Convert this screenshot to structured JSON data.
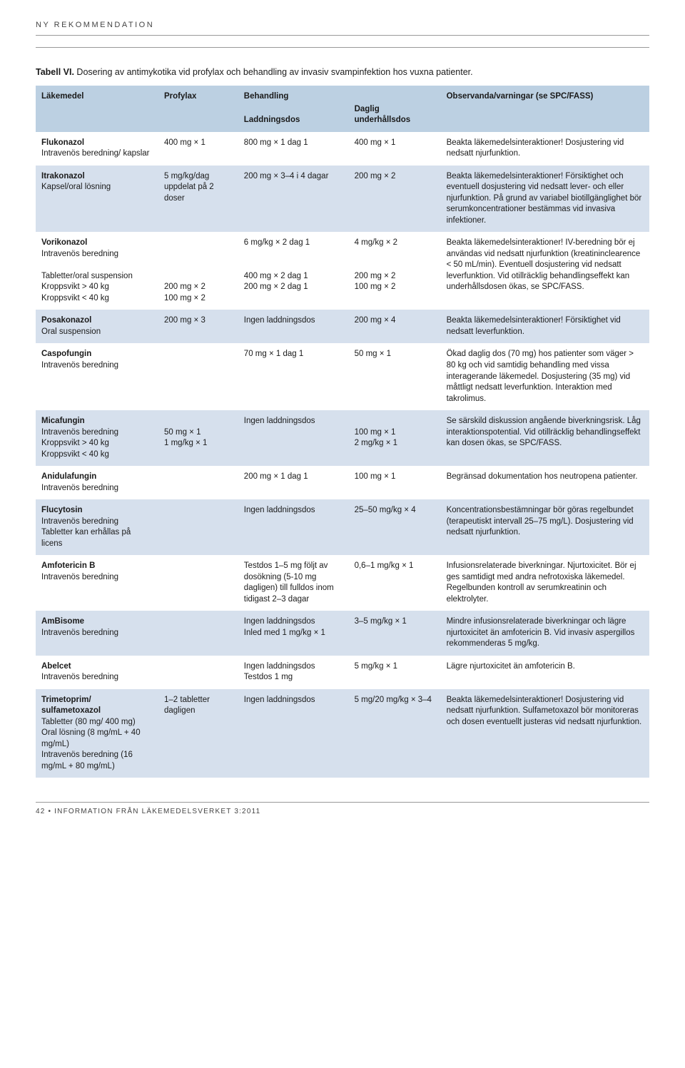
{
  "colors": {
    "header_bg": "#bcd0e2",
    "row_shade": "#d6e0ed",
    "row_white": "#ffffff",
    "rule": "#999999",
    "text": "#1a1a1a"
  },
  "fonts": {
    "base_size_pt": 9,
    "caption_size_pt": 10,
    "header_weight": "bold"
  },
  "layout": {
    "col_widths_pct": [
      20,
      13,
      18,
      15,
      34
    ]
  },
  "running_head": "NY REKOMMENDATION",
  "footer": "42 • INFORMATION FRÅN LÄKEMEDELSVERKET 3:2011",
  "caption": {
    "label": "Tabell VI.",
    "text": " Dosering av antimykotika vid profylax och behandling av invasiv svampinfektion hos vuxna patienter."
  },
  "header": {
    "c1": "Läkemedel",
    "c2": "Profylax",
    "c3a": "Behandling",
    "c3b": "Laddningsdos",
    "c4": "Daglig underhållsdos",
    "c5": "Observanda/varningar (se SPC/FASS)"
  },
  "rows": [
    {
      "shade": false,
      "drug_name": "Flukonazol",
      "drug_sub": "Intravenös beredning/ kapslar",
      "profylax": "400 mg × 1",
      "laddning": "800 mg × 1 dag 1",
      "underhall": "400 mg × 1",
      "obs": "Beakta läkemedelsinteraktioner! Dosjustering vid nedsatt njurfunktion."
    },
    {
      "shade": true,
      "drug_name": "Itrakonazol",
      "drug_sub": "Kapsel/oral lösning",
      "profylax": "5 mg/kg/dag uppdelat på 2 doser",
      "laddning": "200 mg × 3–4 i 4 dagar",
      "underhall": "200 mg × 2",
      "obs": "Beakta läkemedelsinteraktioner! Försiktighet och eventuell dosjustering vid nedsatt lever- och eller njurfunktion. På grund av variabel biotillgänglighet bör serumkoncentrationer bestämmas vid invasiva infektioner."
    },
    {
      "shade": false,
      "drug_name": "Vorikonazol",
      "drug_sub": "Intravenös beredning\n\nTabletter/oral suspension\nKroppsvikt > 40 kg\nKroppsvikt < 40 kg",
      "profylax": "\n\n\n\n200 mg × 2\n100 mg × 2",
      "laddning": "6 mg/kg × 2 dag 1\n\n\n400 mg × 2 dag 1\n200 mg × 2 dag 1",
      "underhall": "4 mg/kg × 2\n\n\n200 mg × 2\n100 mg × 2",
      "obs": "Beakta läkemedelsinteraktioner! IV-beredning bör ej användas vid nedsatt njurfunktion (kreatininclearence < 50 mL/min). Eventuell dosjustering vid nedsatt leverfunktion. Vid otillräcklig behandlingseffekt kan underhållsdosen ökas, se SPC/FASS."
    },
    {
      "shade": true,
      "drug_name": "Posakonazol",
      "drug_sub": "Oral suspension",
      "profylax": "200 mg × 3",
      "laddning": "Ingen laddningsdos",
      "underhall": "200 mg × 4",
      "obs": "Beakta läkemedelsinteraktioner! Försiktighet vid nedsatt leverfunktion."
    },
    {
      "shade": false,
      "drug_name": "Caspofungin",
      "drug_sub": "Intravenös beredning",
      "profylax": "",
      "laddning": "70 mg × 1 dag 1",
      "underhall": "50 mg × 1",
      "obs": "Ökad daglig dos (70 mg) hos patienter som väger > 80 kg och vid samtidig behandling med vissa interagerande läkemedel. Dosjustering (35 mg) vid måttligt nedsatt leverfunktion. Interaktion med takrolimus."
    },
    {
      "shade": true,
      "drug_name": "Micafungin",
      "drug_sub": "Intravenös beredning\nKroppsvikt > 40 kg\nKroppsvikt < 40 kg",
      "profylax": "\n50 mg × 1\n1 mg/kg × 1",
      "laddning": "Ingen laddningsdos",
      "underhall": "\n100 mg × 1\n2 mg/kg × 1",
      "obs": "Se särskild diskussion angående biverkningsrisk. Låg interaktionspotential. Vid otillräcklig behandlingseffekt kan dosen ökas, se SPC/FASS."
    },
    {
      "shade": false,
      "drug_name": "Anidulafungin",
      "drug_sub": "Intravenös beredning",
      "profylax": "",
      "laddning": "200 mg × 1 dag 1",
      "underhall": "100 mg × 1",
      "obs": "Begränsad dokumentation hos neutropena patienter."
    },
    {
      "shade": true,
      "drug_name": "Flucytosin",
      "drug_sub": "Intravenös beredning\nTabletter kan erhållas på licens",
      "profylax": "",
      "laddning": "Ingen laddningsdos",
      "underhall": "25–50 mg/kg × 4",
      "obs": "Koncentrationsbestämningar bör göras regelbundet (terapeutiskt intervall 25–75 mg/L). Dosjustering vid nedsatt njurfunktion."
    },
    {
      "shade": false,
      "drug_name": "Amfotericin B",
      "drug_sub": "Intravenös beredning",
      "profylax": "",
      "laddning": "Testdos 1–5 mg följt av dosökning (5-10 mg dagligen) till fulldos inom tidigast 2–3 dagar",
      "underhall": "0,6–1 mg/kg × 1",
      "obs": "Infusionsrelaterade biverkningar. Njurtoxicitet. Bör ej ges samtidigt med andra nefrotoxiska läkemedel. Regelbunden kontroll av serumkreatinin och elektrolyter."
    },
    {
      "shade": true,
      "drug_name": "AmBisome",
      "drug_sub": "Intravenös beredning",
      "profylax": "",
      "laddning": "Ingen laddningsdos\nInled med 1 mg/kg × 1",
      "underhall": "3–5 mg/kg × 1",
      "obs": "Mindre infusionsrelaterade biverkningar och lägre njurtoxicitet än amfotericin B. Vid invasiv aspergillos rekommenderas 5 mg/kg."
    },
    {
      "shade": false,
      "drug_name": "Abelcet",
      "drug_sub": "Intravenös beredning",
      "profylax": "",
      "laddning": "Ingen laddningsdos\nTestdos 1 mg",
      "underhall": "5 mg/kg × 1",
      "obs": "Lägre njurtoxicitet än amfotericin B."
    },
    {
      "shade": true,
      "drug_name": "Trimetoprim/\nsulfametoxazol",
      "drug_sub": "Tabletter (80 mg/ 400 mg)\nOral lösning (8 mg/mL + 40 mg/mL)\nIntravenös beredning (16 mg/mL + 80 mg/mL)",
      "profylax": "1–2 tabletter dagligen",
      "laddning": "Ingen laddningsdos",
      "underhall": "5 mg/20 mg/kg × 3–4",
      "obs": "Beakta läkemedelsinteraktioner! Dosjustering vid nedsatt njurfunktion. Sulfametoxazol bör monitoreras och dosen eventuellt justeras vid nedsatt njurfunktion."
    }
  ]
}
